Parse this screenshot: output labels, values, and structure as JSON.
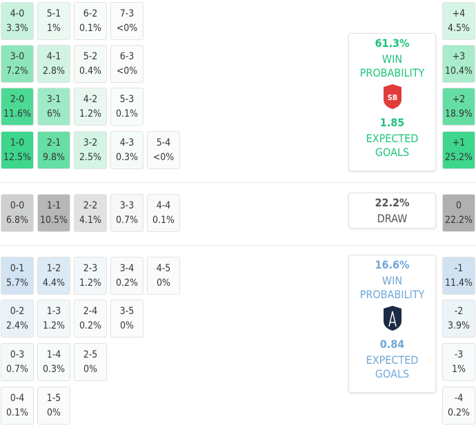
{
  "home": {
    "color": "#3dd68c",
    "rows": [
      [
        {
          "score": "4-0",
          "prob": "3.3%"
        },
        {
          "score": "5-1",
          "prob": "1%"
        },
        {
          "score": "6-2",
          "prob": "0.1%"
        },
        {
          "score": "7-3",
          "prob": "<0%"
        }
      ],
      [
        {
          "score": "3-0",
          "prob": "7.2%"
        },
        {
          "score": "4-1",
          "prob": "2.8%"
        },
        {
          "score": "5-2",
          "prob": "0.4%"
        },
        {
          "score": "6-3",
          "prob": "<0%"
        }
      ],
      [
        {
          "score": "2-0",
          "prob": "11.6%"
        },
        {
          "score": "3-1",
          "prob": "6%"
        },
        {
          "score": "4-2",
          "prob": "1.2%"
        },
        {
          "score": "5-3",
          "prob": "0.1%"
        }
      ],
      [
        {
          "score": "1-0",
          "prob": "12.5%"
        },
        {
          "score": "2-1",
          "prob": "9.8%"
        },
        {
          "score": "3-2",
          "prob": "2.5%"
        },
        {
          "score": "4-3",
          "prob": "0.3%"
        },
        {
          "score": "5-4",
          "prob": "<0%"
        }
      ]
    ],
    "panel": {
      "win_pct": "61.3%",
      "win_label": "WIN PROBABILITY",
      "xg": "1.85",
      "xg_label": "EXPECTED GOALS"
    },
    "margins": [
      {
        "margin": "+4",
        "prob": "4.5%"
      },
      {
        "margin": "+3",
        "prob": "10.4%"
      },
      {
        "margin": "+2",
        "prob": "18.9%"
      },
      {
        "margin": "+1",
        "prob": "25.2%"
      }
    ]
  },
  "draw": {
    "color": "#aaaaaa",
    "rows": [
      [
        {
          "score": "0-0",
          "prob": "6.8%"
        },
        {
          "score": "1-1",
          "prob": "10.5%"
        },
        {
          "score": "2-2",
          "prob": "4.1%"
        },
        {
          "score": "3-3",
          "prob": "0.7%"
        },
        {
          "score": "4-4",
          "prob": "0.1%"
        }
      ]
    ],
    "panel": {
      "pct": "22.2%",
      "label": "DRAW"
    },
    "margins": [
      {
        "margin": "0",
        "prob": "22.2%"
      }
    ]
  },
  "away": {
    "color": "#a3c8ea",
    "rows": [
      [
        {
          "score": "0-1",
          "prob": "5.7%"
        },
        {
          "score": "1-2",
          "prob": "4.4%"
        },
        {
          "score": "2-3",
          "prob": "1.2%"
        },
        {
          "score": "3-4",
          "prob": "0.2%"
        },
        {
          "score": "4-5",
          "prob": "0%"
        }
      ],
      [
        {
          "score": "0-2",
          "prob": "2.4%"
        },
        {
          "score": "1-3",
          "prob": "1.2%"
        },
        {
          "score": "2-4",
          "prob": "0.2%"
        },
        {
          "score": "3-5",
          "prob": "0%"
        }
      ],
      [
        {
          "score": "0-3",
          "prob": "0.7%"
        },
        {
          "score": "1-4",
          "prob": "0.3%"
        },
        {
          "score": "2-5",
          "prob": "0%"
        }
      ],
      [
        {
          "score": "0-4",
          "prob": "0.1%"
        },
        {
          "score": "1-5",
          "prob": "0%"
        }
      ]
    ],
    "panel": {
      "win_pct": "16.6%",
      "win_label": "WIN PROBABILITY",
      "xg": "0.84",
      "xg_label": "EXPECTED GOALS"
    },
    "margins": [
      {
        "margin": "-1",
        "prob": "11.4%"
      },
      {
        "margin": "-2",
        "prob": "3.9%"
      },
      {
        "margin": "-3",
        "prob": "1%"
      },
      {
        "margin": "-4",
        "prob": "0.2%"
      }
    ]
  }
}
